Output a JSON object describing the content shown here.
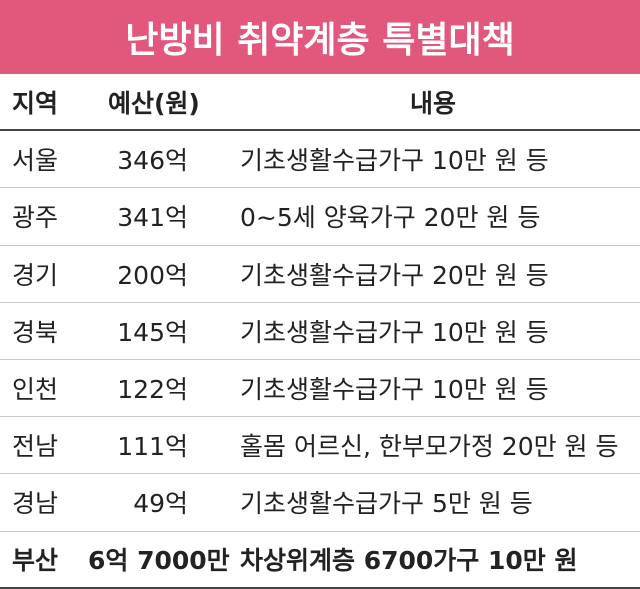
{
  "title": "난방비 취약계층 특별대책",
  "table": {
    "header": [
      "지역",
      "예산(원)",
      "내용"
    ],
    "rows": [
      [
        "서울",
        "346억",
        "기초생활수급가구 10만 원 등"
      ],
      [
        "광주",
        "341억",
        "0~5세 양육가구 20만 원 등"
      ],
      [
        "경기",
        "200억",
        "기초생활수급가구 20만 원 등"
      ],
      [
        "경북",
        "145억",
        "기초생활수급가구 10만 원 등"
      ],
      [
        "인천",
        "122억",
        "기초생활수급가구 10만 원 등"
      ],
      [
        "전남",
        "111억",
        "홀몸 어르신, 한부모가정 20만 원 등"
      ],
      [
        "경남",
        "49억",
        "기초생활수급가구 5만 원 등"
      ],
      [
        "부산",
        "6억 7000만",
        "차상위계층 6700가구 10만 원"
      ]
    ]
  }
}
